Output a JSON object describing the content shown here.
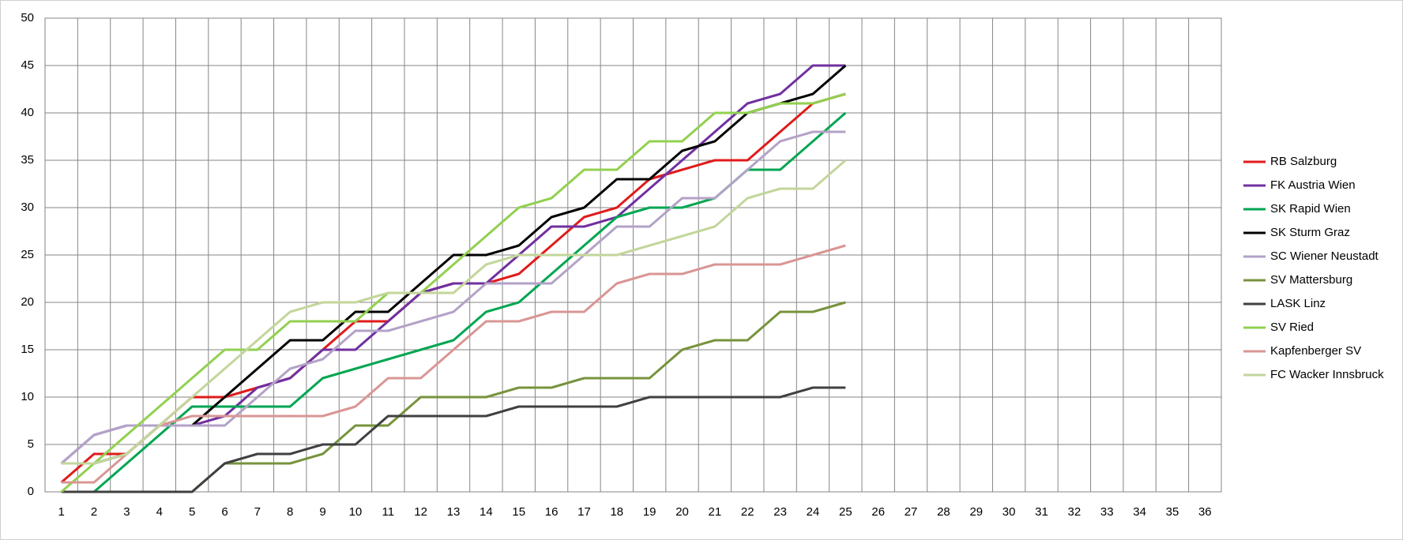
{
  "chart_data": {
    "type": "line",
    "categories": [
      "1",
      "2",
      "3",
      "4",
      "5",
      "6",
      "7",
      "8",
      "9",
      "10",
      "11",
      "12",
      "13",
      "14",
      "15",
      "16",
      "17",
      "18",
      "19",
      "20",
      "21",
      "22",
      "23",
      "24",
      "25",
      "26",
      "27",
      "28",
      "29",
      "30",
      "31",
      "32",
      "33",
      "34",
      "35",
      "36"
    ],
    "ylim": [
      0,
      50
    ],
    "yticks": [
      0,
      5,
      10,
      15,
      20,
      25,
      30,
      35,
      40,
      45,
      50
    ],
    "grid": true,
    "legend": "right",
    "series": [
      {
        "name": "RB Salzburg",
        "color": "#e01b1b",
        "values": [
          1,
          4,
          4,
          7,
          10,
          10,
          11,
          12,
          15,
          18,
          18,
          21,
          22,
          22,
          23,
          26,
          29,
          30,
          33,
          34,
          35,
          35,
          38,
          41,
          42,
          null,
          null,
          null,
          null,
          null,
          null,
          null,
          null,
          null,
          null,
          null
        ]
      },
      {
        "name": "FK Austria Wien",
        "color": "#7030a0",
        "values": [
          3,
          6,
          7,
          7,
          7,
          8,
          11,
          12,
          15,
          15,
          18,
          21,
          22,
          22,
          25,
          28,
          28,
          29,
          32,
          35,
          38,
          41,
          42,
          45,
          45,
          null,
          null,
          null,
          null,
          null,
          null,
          null,
          null,
          null,
          null,
          null
        ]
      },
      {
        "name": "SK Rapid Wien",
        "color": "#00a651",
        "values": [
          0,
          0,
          3,
          6,
          9,
          9,
          9,
          9,
          12,
          13,
          14,
          15,
          16,
          19,
          20,
          23,
          26,
          29,
          30,
          30,
          31,
          34,
          34,
          37,
          40,
          null,
          null,
          null,
          null,
          null,
          null,
          null,
          null,
          null,
          null,
          null
        ]
      },
      {
        "name": "SK Sturm Graz",
        "color": "#000000",
        "values": [
          3,
          3,
          4,
          7,
          7,
          10,
          13,
          16,
          16,
          19,
          19,
          22,
          25,
          25,
          26,
          29,
          30,
          33,
          33,
          36,
          37,
          40,
          41,
          42,
          45,
          null,
          null,
          null,
          null,
          null,
          null,
          null,
          null,
          null,
          null,
          null
        ]
      },
      {
        "name": "SC Wiener Neustadt",
        "color": "#b3a2c7",
        "values": [
          3,
          6,
          7,
          7,
          7,
          7,
          10,
          13,
          14,
          17,
          17,
          18,
          19,
          22,
          22,
          22,
          25,
          28,
          28,
          31,
          31,
          34,
          37,
          38,
          38,
          null,
          null,
          null,
          null,
          null,
          null,
          null,
          null,
          null,
          null,
          null
        ]
      },
      {
        "name": "SV Mattersburg",
        "color": "#77933c",
        "values": [
          0,
          0,
          0,
          0,
          0,
          3,
          3,
          3,
          4,
          7,
          7,
          10,
          10,
          10,
          11,
          11,
          12,
          12,
          12,
          15,
          16,
          16,
          19,
          19,
          20,
          null,
          null,
          null,
          null,
          null,
          null,
          null,
          null,
          null,
          null,
          null
        ]
      },
      {
        "name": "LASK Linz",
        "color": "#404040",
        "values": [
          0,
          0,
          0,
          0,
          0,
          3,
          4,
          4,
          5,
          5,
          8,
          8,
          8,
          8,
          9,
          9,
          9,
          9,
          10,
          10,
          10,
          10,
          10,
          11,
          11,
          null,
          null,
          null,
          null,
          null,
          null,
          null,
          null,
          null,
          null,
          null
        ]
      },
      {
        "name": "SV Ried",
        "color": "#92d050",
        "values": [
          0,
          3,
          6,
          9,
          12,
          15,
          15,
          18,
          18,
          18,
          21,
          21,
          24,
          27,
          30,
          31,
          34,
          34,
          37,
          37,
          40,
          40,
          41,
          41,
          42,
          null,
          null,
          null,
          null,
          null,
          null,
          null,
          null,
          null,
          null,
          null
        ]
      },
      {
        "name": "Kapfenberger SV",
        "color": "#d99694",
        "values": [
          1,
          1,
          4,
          7,
          8,
          8,
          8,
          8,
          8,
          9,
          12,
          12,
          15,
          18,
          18,
          19,
          19,
          22,
          23,
          23,
          24,
          24,
          24,
          25,
          26,
          null,
          null,
          null,
          null,
          null,
          null,
          null,
          null,
          null,
          null,
          null
        ]
      },
      {
        "name": "FC Wacker Innsbruck",
        "color": "#c3d69b",
        "values": [
          3,
          3,
          4,
          7,
          10,
          13,
          16,
          19,
          20,
          20,
          21,
          21,
          21,
          24,
          25,
          25,
          25,
          25,
          26,
          27,
          28,
          31,
          32,
          32,
          35,
          null,
          null,
          null,
          null,
          null,
          null,
          null,
          null,
          null,
          null,
          null
        ]
      }
    ]
  }
}
